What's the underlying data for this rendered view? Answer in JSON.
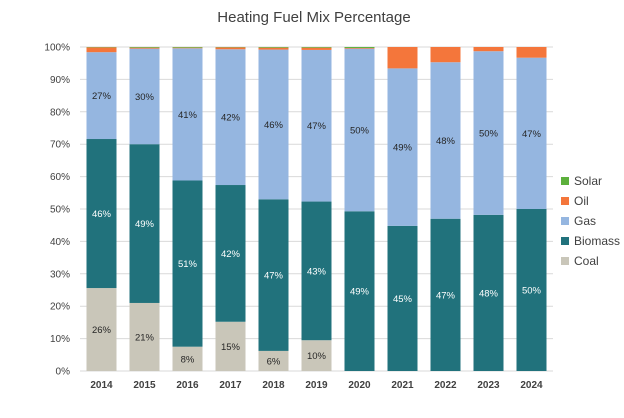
{
  "chart_data": {
    "type": "bar",
    "stacked": true,
    "title": "Heating Fuel Mix Percentage",
    "xlabel": "",
    "ylabel": "",
    "ylim": [
      0,
      100
    ],
    "y_ticks": [
      "0%",
      "10%",
      "20%",
      "30%",
      "40%",
      "50%",
      "60%",
      "70%",
      "80%",
      "90%",
      "100%"
    ],
    "grid": true,
    "legend_position": "right",
    "categories": [
      "2014",
      "2015",
      "2016",
      "2017",
      "2018",
      "2019",
      "2020",
      "2021",
      "2022",
      "2023",
      "2024"
    ],
    "series": [
      {
        "name": "Coal",
        "color": "#c9c6b9",
        "values": [
          25.6,
          21.0,
          7.5,
          15.2,
          6.2,
          9.5,
          0,
          0,
          0,
          0,
          0
        ],
        "labels": [
          "26%",
          "21%",
          "8%",
          "15%",
          "6%",
          "10%",
          "",
          "",
          "",
          "",
          ""
        ],
        "label_color": "#262626"
      },
      {
        "name": "Biomass",
        "color": "#21727c",
        "values": [
          46.0,
          49.0,
          51.3,
          42.2,
          46.8,
          42.8,
          49.3,
          44.8,
          47.0,
          48.2,
          50.0
        ],
        "labels": [
          "46%",
          "49%",
          "51%",
          "42%",
          "47%",
          "43%",
          "49%",
          "45%",
          "47%",
          "48%",
          "50%"
        ],
        "label_color": "#ffffff"
      },
      {
        "name": "Gas",
        "color": "#95b6e0",
        "values": [
          26.8,
          29.5,
          40.8,
          41.9,
          46.2,
          46.8,
          50.2,
          48.6,
          48.3,
          50.5,
          46.7
        ],
        "labels": [
          "27%",
          "30%",
          "41%",
          "42%",
          "46%",
          "47%",
          "50%",
          "49%",
          "48%",
          "50%",
          "47%"
        ],
        "label_color": "#262626"
      },
      {
        "name": "Oil",
        "color": "#f4763b",
        "values": [
          1.5,
          0.3,
          0.2,
          0.6,
          0.6,
          0.7,
          0.2,
          6.6,
          4.7,
          1.3,
          3.3
        ],
        "labels": [
          "",
          "",
          "",
          "",
          "",
          "",
          "",
          "",
          "",
          "",
          ""
        ],
        "label_color": "#262626"
      },
      {
        "name": "Solar",
        "color": "#5cb03c",
        "values": [
          0.1,
          0.2,
          0.2,
          0.1,
          0.2,
          0.2,
          0.3,
          0,
          0,
          0,
          0
        ],
        "labels": [
          "",
          "",
          "",
          "",
          "",
          "",
          "",
          "",
          "",
          "",
          ""
        ],
        "label_color": "#262626"
      }
    ],
    "legend_order": [
      "Solar",
      "Oil",
      "Gas",
      "Biomass",
      "Coal"
    ]
  }
}
